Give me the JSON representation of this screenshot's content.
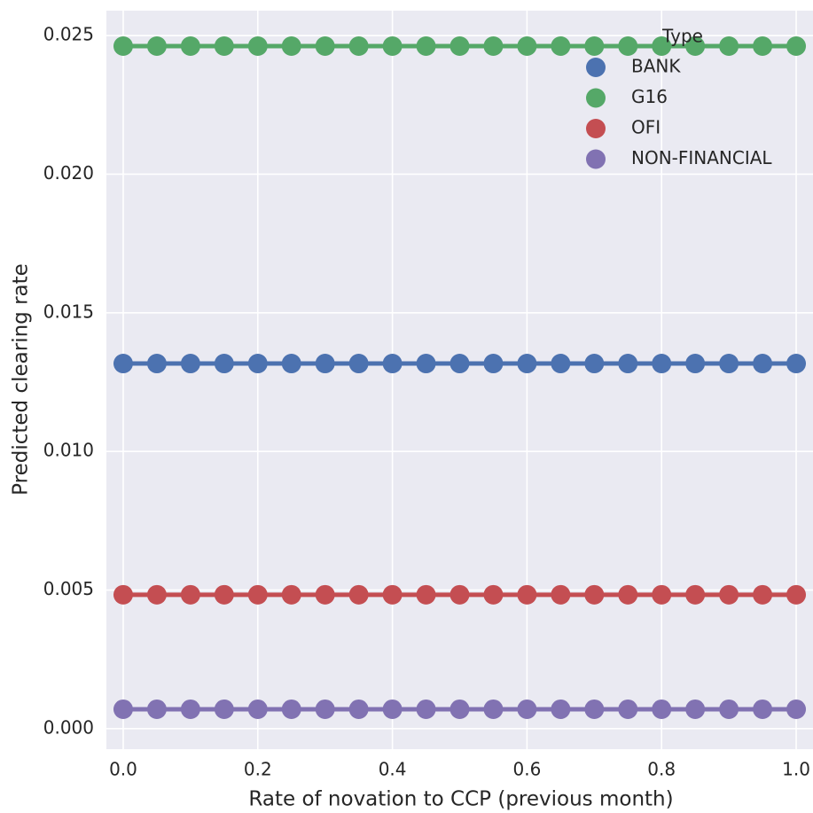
{
  "chart_data": {
    "type": "line",
    "xlabel": "Rate of novation to CCP (previous month)",
    "ylabel": "Predicted clearing rate",
    "x": [
      0,
      0.05,
      0.1,
      0.15,
      0.2,
      0.25,
      0.3,
      0.35,
      0.4,
      0.45,
      0.5,
      0.55,
      0.6,
      0.65,
      0.7,
      0.75,
      0.8,
      0.85,
      0.9,
      0.95,
      1
    ],
    "series": [
      {
        "name": "BANK",
        "color": "#4C72B0",
        "values": [
          0.01317,
          0.01317,
          0.01317,
          0.01317,
          0.01317,
          0.01317,
          0.01317,
          0.01317,
          0.01317,
          0.01317,
          0.01317,
          0.01317,
          0.01317,
          0.01317,
          0.01317,
          0.01317,
          0.01317,
          0.01317,
          0.01317,
          0.01317,
          0.01317
        ]
      },
      {
        "name": "G16",
        "color": "#55A868",
        "values": [
          0.02462,
          0.02462,
          0.02462,
          0.02462,
          0.02462,
          0.02462,
          0.02462,
          0.02462,
          0.02462,
          0.02462,
          0.02462,
          0.02462,
          0.02462,
          0.02462,
          0.02462,
          0.02462,
          0.02462,
          0.02462,
          0.02462,
          0.02462,
          0.02462
        ]
      },
      {
        "name": "OFI",
        "color": "#C44E52",
        "values": [
          0.00483,
          0.00483,
          0.00483,
          0.00483,
          0.00483,
          0.00483,
          0.00483,
          0.00483,
          0.00483,
          0.00483,
          0.00483,
          0.00483,
          0.00483,
          0.00483,
          0.00483,
          0.00483,
          0.00483,
          0.00483,
          0.00483,
          0.00483,
          0.00483
        ]
      },
      {
        "name": "NON-FINANCIAL",
        "color": "#8172B2",
        "values": [
          0.0007,
          0.0007,
          0.0007,
          0.0007,
          0.0007,
          0.0007,
          0.0007,
          0.0007,
          0.0007,
          0.0007,
          0.0007,
          0.0007,
          0.0007,
          0.0007,
          0.0007,
          0.0007,
          0.0007,
          0.0007,
          0.0007,
          0.0007,
          0.0007
        ]
      }
    ],
    "legend_title": "Type",
    "legend": "upper right",
    "grid": true,
    "xlim": [
      -0.025,
      1.025
    ],
    "ylim": [
      -0.00074,
      0.0259
    ],
    "xticks": [
      {
        "value": 0,
        "label": "0.0"
      },
      0.2,
      0.4,
      0.6,
      0.8,
      {
        "value": 1,
        "label": "1.0"
      }
    ],
    "yticks": [
      {
        "value": 0,
        "label": "0.000"
      },
      {
        "value": 0.005,
        "label": "0.005"
      },
      {
        "value": 0.01,
        "label": "0.010"
      },
      {
        "value": 0.015,
        "label": "0.015"
      },
      {
        "value": 0.02,
        "label": "0.020"
      },
      {
        "value": 0.025,
        "label": "0.025"
      }
    ]
  }
}
